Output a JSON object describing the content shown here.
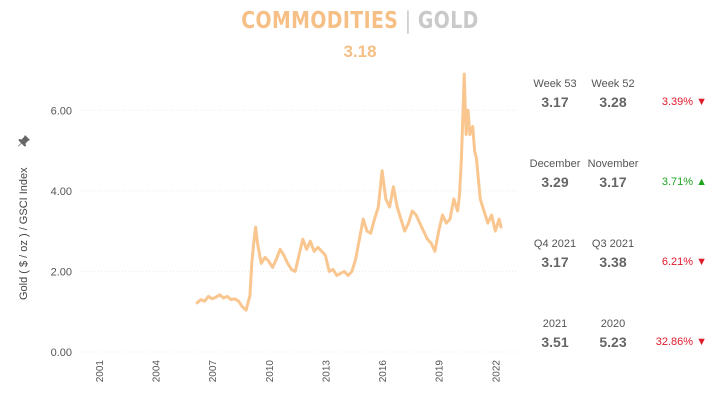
{
  "header": {
    "title_main": "COMMODITIES",
    "title_sep": " | ",
    "title_sub": "GOLD",
    "current_value": "3.18"
  },
  "pin_icon": "pin-icon",
  "colors": {
    "accent": "#f6bf85",
    "line": "#f9c690",
    "negative": "#e0192b",
    "positive": "#1fa31f"
  },
  "chart_data": {
    "type": "line",
    "title": "",
    "ylabel": "Gold ( $ / oz ) / GSCI Index",
    "xlabel": "",
    "ylim": [
      0,
      7.0
    ],
    "xlim": [
      2000.0,
      2023.2
    ],
    "y_ticks": [
      "0.00",
      "2.00",
      "4.00",
      "6.00"
    ],
    "y_tick_values": [
      0,
      2,
      4,
      6
    ],
    "x_ticks": [
      "2001",
      "2004",
      "2007",
      "2010",
      "2013",
      "2016",
      "2019",
      "2022"
    ],
    "grid": "horizontal",
    "series": [
      {
        "values": [
          [
            2006.2,
            1.22
          ],
          [
            2006.4,
            1.3
          ],
          [
            2006.6,
            1.26
          ],
          [
            2006.8,
            1.38
          ],
          [
            2007.0,
            1.32
          ],
          [
            2007.2,
            1.36
          ],
          [
            2007.4,
            1.42
          ],
          [
            2007.6,
            1.34
          ],
          [
            2007.8,
            1.38
          ],
          [
            2008.0,
            1.3
          ],
          [
            2008.2,
            1.32
          ],
          [
            2008.4,
            1.26
          ],
          [
            2008.6,
            1.12
          ],
          [
            2008.8,
            1.04
          ],
          [
            2009.0,
            1.4
          ],
          [
            2009.1,
            2.2
          ],
          [
            2009.2,
            2.7
          ],
          [
            2009.3,
            3.1
          ],
          [
            2009.4,
            2.7
          ],
          [
            2009.6,
            2.2
          ],
          [
            2009.8,
            2.35
          ],
          [
            2010.0,
            2.25
          ],
          [
            2010.2,
            2.1
          ],
          [
            2010.4,
            2.3
          ],
          [
            2010.6,
            2.55
          ],
          [
            2010.8,
            2.4
          ],
          [
            2011.0,
            2.2
          ],
          [
            2011.2,
            2.05
          ],
          [
            2011.4,
            2.0
          ],
          [
            2011.6,
            2.4
          ],
          [
            2011.8,
            2.8
          ],
          [
            2012.0,
            2.55
          ],
          [
            2012.2,
            2.75
          ],
          [
            2012.4,
            2.5
          ],
          [
            2012.6,
            2.6
          ],
          [
            2012.8,
            2.5
          ],
          [
            2013.0,
            2.4
          ],
          [
            2013.2,
            2.0
          ],
          [
            2013.4,
            2.05
          ],
          [
            2013.6,
            1.9
          ],
          [
            2013.8,
            1.95
          ],
          [
            2014.0,
            2.0
          ],
          [
            2014.2,
            1.9
          ],
          [
            2014.4,
            2.0
          ],
          [
            2014.6,
            2.3
          ],
          [
            2014.8,
            2.8
          ],
          [
            2015.0,
            3.3
          ],
          [
            2015.2,
            3.0
          ],
          [
            2015.4,
            2.95
          ],
          [
            2015.6,
            3.3
          ],
          [
            2015.8,
            3.6
          ],
          [
            2016.0,
            4.5
          ],
          [
            2016.2,
            3.8
          ],
          [
            2016.4,
            3.6
          ],
          [
            2016.6,
            4.1
          ],
          [
            2016.8,
            3.6
          ],
          [
            2017.0,
            3.3
          ],
          [
            2017.2,
            3.0
          ],
          [
            2017.4,
            3.2
          ],
          [
            2017.6,
            3.5
          ],
          [
            2017.8,
            3.4
          ],
          [
            2018.0,
            3.2
          ],
          [
            2018.2,
            3.0
          ],
          [
            2018.4,
            2.8
          ],
          [
            2018.6,
            2.7
          ],
          [
            2018.8,
            2.5
          ],
          [
            2019.0,
            3.0
          ],
          [
            2019.2,
            3.4
          ],
          [
            2019.4,
            3.2
          ],
          [
            2019.6,
            3.3
          ],
          [
            2019.8,
            3.8
          ],
          [
            2020.0,
            3.5
          ],
          [
            2020.1,
            3.9
          ],
          [
            2020.2,
            4.8
          ],
          [
            2020.3,
            6.1
          ],
          [
            2020.35,
            6.9
          ],
          [
            2020.45,
            5.4
          ],
          [
            2020.55,
            6.0
          ],
          [
            2020.65,
            5.4
          ],
          [
            2020.8,
            5.6
          ],
          [
            2020.9,
            5.0
          ],
          [
            2021.0,
            4.8
          ],
          [
            2021.2,
            3.8
          ],
          [
            2021.4,
            3.5
          ],
          [
            2021.6,
            3.2
          ],
          [
            2021.8,
            3.4
          ],
          [
            2022.0,
            3.0
          ],
          [
            2022.2,
            3.3
          ],
          [
            2022.3,
            3.1
          ]
        ]
      }
    ]
  },
  "side_panel": [
    {
      "label_a": "Week 53",
      "label_b": "Week 52",
      "value_a": "3.17",
      "value_b": "3.28",
      "change": "3.39%",
      "direction": "down",
      "arrow": "▼"
    },
    {
      "label_a": "December",
      "label_b": "November",
      "value_a": "3.29",
      "value_b": "3.17",
      "change": "3.71%",
      "direction": "up",
      "arrow": "▲"
    },
    {
      "label_a": "Q4 2021",
      "label_b": "Q3 2021",
      "value_a": "3.17",
      "value_b": "3.38",
      "change": "6.21%",
      "direction": "down",
      "arrow": "▼"
    },
    {
      "label_a": "2021",
      "label_b": "2020",
      "value_a": "3.51",
      "value_b": "5.23",
      "change": "32.86%",
      "direction": "down",
      "arrow": "▼"
    }
  ]
}
